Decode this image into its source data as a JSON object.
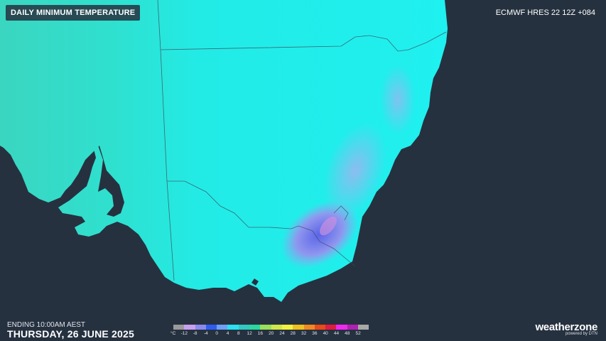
{
  "title": "DAILY MINIMUM TEMPERATURE",
  "model": "ECMWF HRES 22 12Z +084",
  "ending": "ENDING 10:00AM AEST",
  "date": "THURSDAY, 26 JUNE 2025",
  "legend": {
    "unit": "°C",
    "labels": [
      "-12",
      "-8",
      "-4",
      "0",
      "4",
      "8",
      "12",
      "16",
      "20",
      "24",
      "28",
      "32",
      "36",
      "40",
      "44",
      "48",
      "52"
    ],
    "colors": [
      "#9a9a9a",
      "#c8a0f0",
      "#8a8aee",
      "#2f5cf0",
      "#6ea0f5",
      "#2be0f0",
      "#33c8c0",
      "#2ad7a0",
      "#9ae05a",
      "#d0e64a",
      "#f2f040",
      "#f0c020",
      "#f08a20",
      "#e84a1a",
      "#e01a40",
      "#f028f0",
      "#b020b0",
      "#a8a8a8"
    ]
  },
  "brand": {
    "name": "weatherzone",
    "sub": "powered by DTN"
  },
  "colors": {
    "ocean": "#263140",
    "land_mid": "#22e8e8",
    "land_west": "#3ad6c0",
    "cold": "#7a88ee"
  }
}
